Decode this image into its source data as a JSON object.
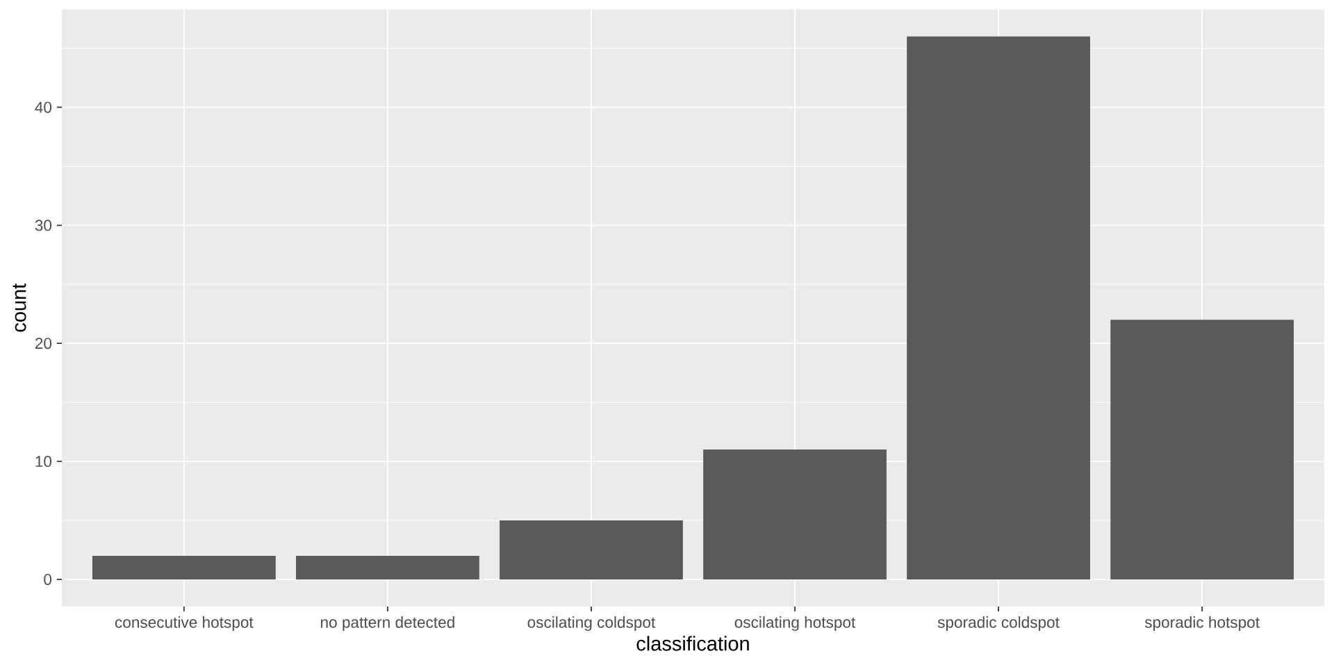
{
  "chart_data": {
    "type": "bar",
    "xlabel": "classification",
    "ylabel": "count",
    "categories": [
      "consecutive hotspot",
      "no pattern detected",
      "oscilating coldspot",
      "oscilating hotspot",
      "sporadic coldspot",
      "sporadic hotspot"
    ],
    "values": [
      2,
      2,
      5,
      11,
      46,
      22
    ],
    "color": "#595959",
    "ylim": [
      -2.3,
      48.3
    ],
    "yticks": [
      0,
      10,
      20,
      30,
      40
    ],
    "grid": true
  }
}
